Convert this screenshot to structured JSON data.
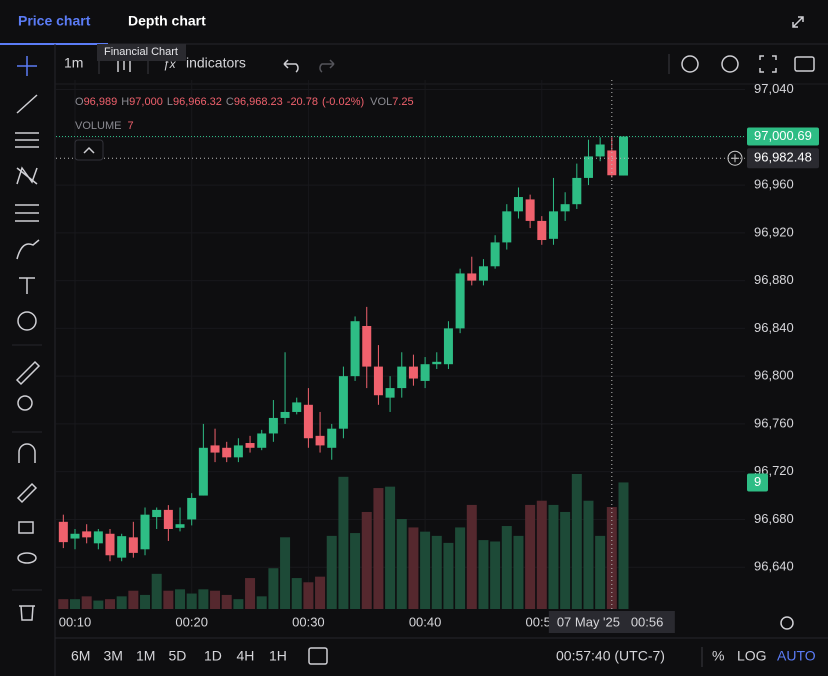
{
  "header": {
    "tabs": [
      "Price chart",
      "Depth chart"
    ]
  },
  "toolbar": {
    "interval": "1m",
    "indicators": "indicators",
    "tooltip": "Financial Chart"
  },
  "legend": {
    "o_label": "O",
    "open": "96,989",
    "h_label": "H",
    "high": "97,000",
    "l_label": "L",
    "low": "96,966.32",
    "c_label": "C",
    "close": "96,968.23",
    "change": "-20.78",
    "change_pct": "(-0.02%)",
    "vol_label": "VOL",
    "vol": "7.25",
    "volume_label": "VOLUME",
    "volume": "7"
  },
  "chart_data": {
    "type": "candlestick",
    "x": [
      9,
      10,
      11,
      12,
      13,
      14,
      15,
      16,
      17,
      18,
      19,
      20,
      21,
      22,
      23,
      24,
      25,
      26,
      27,
      28,
      29,
      30,
      31,
      32,
      33,
      34,
      35,
      36,
      37,
      38,
      39,
      40,
      41,
      42,
      43,
      44,
      45,
      46,
      47,
      48,
      49,
      50,
      51,
      52,
      53,
      54,
      55,
      56,
      57
    ],
    "open": [
      96678,
      96664,
      96670,
      96660,
      96668,
      96648,
      96665,
      96655,
      96682,
      96688,
      96673,
      96680,
      96700,
      96742,
      96740,
      96732,
      96744,
      96740,
      96752,
      96765,
      96770,
      96776,
      96750,
      96740,
      96756,
      96800,
      96842,
      96808,
      96782,
      96790,
      96808,
      96796,
      96810,
      96810,
      96840,
      96886,
      96880,
      96892,
      96912,
      96938,
      96948,
      96930,
      96915,
      96938,
      96944,
      96966,
      96984,
      96989,
      96968
    ],
    "high": [
      96684,
      96672,
      96676,
      96672,
      96672,
      96668,
      96678,
      96690,
      96690,
      96692,
      96690,
      96702,
      96760,
      96756,
      96745,
      96748,
      96750,
      96755,
      96780,
      96820,
      96782,
      96790,
      96770,
      96760,
      96808,
      96850,
      96858,
      96826,
      96800,
      96820,
      96818,
      96816,
      96820,
      96846,
      96890,
      96900,
      96898,
      96918,
      96944,
      96958,
      96952,
      96934,
      96966,
      96954,
      96978,
      96998,
      97000,
      97000,
      97001
    ],
    "low": [
      96656,
      96655,
      96660,
      96655,
      96645,
      96645,
      96648,
      96650,
      96672,
      96662,
      96670,
      96675,
      96700,
      96728,
      96728,
      96728,
      96736,
      96738,
      96745,
      96760,
      96768,
      96740,
      96736,
      96730,
      96748,
      96796,
      96790,
      96776,
      96770,
      96782,
      96792,
      96790,
      96806,
      96806,
      96836,
      96876,
      96876,
      96890,
      96906,
      96932,
      96924,
      96910,
      96910,
      96930,
      96940,
      96960,
      96980,
      96966.32,
      96968
    ],
    "close": [
      96661,
      96668,
      96665,
      96670,
      96650,
      96666,
      96652,
      96684,
      96688,
      96672,
      96676,
      96698,
      96740,
      96736,
      96732,
      96742,
      96740,
      96752,
      96765,
      96770,
      96778,
      96748,
      96742,
      96756,
      96800,
      96846,
      96808,
      96784,
      96790,
      96808,
      96798,
      96810,
      96812,
      96840,
      96886,
      96880,
      96892,
      96912,
      96938,
      96950,
      96930,
      96914,
      96938,
      96944,
      96966,
      96984,
      96994,
      96968.23,
      97000.69
    ],
    "volume": [
      0.7,
      0.7,
      0.9,
      0.6,
      0.7,
      0.9,
      1.3,
      1.0,
      2.5,
      1.3,
      1.4,
      1.1,
      1.4,
      1.3,
      1.0,
      0.7,
      2.2,
      0.9,
      2.9,
      5.1,
      2.2,
      1.9,
      2.3,
      5.2,
      9.4,
      5.4,
      6.9,
      8.6,
      8.7,
      6.4,
      5.8,
      5.5,
      5.2,
      4.7,
      5.8,
      7.4,
      4.9,
      4.8,
      5.9,
      5.2,
      7.4,
      7.7,
      7.4,
      6.9,
      9.6,
      7.7,
      5.2,
      7.25,
      9
    ],
    "up_color": "#2ebd85",
    "down_color": "#f0616d",
    "volume_up_color": "#1d4a37",
    "volume_down_color": "#55282e",
    "ylim": [
      96605,
      97048
    ],
    "yticks": [
      {
        "value": 97040,
        "label": "97,040"
      },
      {
        "value": 97000,
        "label": "97,000"
      },
      {
        "value": 96960,
        "label": "96,960"
      },
      {
        "value": 96920,
        "label": "96,920"
      },
      {
        "value": 96880,
        "label": "96,880"
      },
      {
        "value": 96840,
        "label": "96,840"
      },
      {
        "value": 96800,
        "label": "96,800"
      },
      {
        "value": 96760,
        "label": "96,760"
      },
      {
        "value": 96720,
        "label": "96,720"
      },
      {
        "value": 96680,
        "label": "96,680"
      },
      {
        "value": 96640,
        "label": "96,640"
      }
    ],
    "xticks": [
      {
        "value": 10,
        "label": "00:10"
      },
      {
        "value": 20,
        "label": "00:20"
      },
      {
        "value": 30,
        "label": "00:30"
      },
      {
        "value": 40,
        "label": "00:40"
      },
      {
        "value": 50,
        "label": "00:50"
      }
    ],
    "last_price": {
      "value": 97000.69,
      "label": "97,000.69"
    },
    "last_volume_label": "9",
    "crosshair": {
      "x": 56,
      "price": 96982.48,
      "price_label": "96,982.48",
      "date_label": "07 May '25",
      "time_label": "00:56"
    },
    "grid": true
  },
  "footer": {
    "ranges": [
      "6M",
      "3M",
      "1M",
      "5D",
      "1D",
      "4H",
      "1H"
    ],
    "clock": "00:57:40 (UTC-7)",
    "percent": "%",
    "log": "LOG",
    "auto": "AUTO"
  }
}
